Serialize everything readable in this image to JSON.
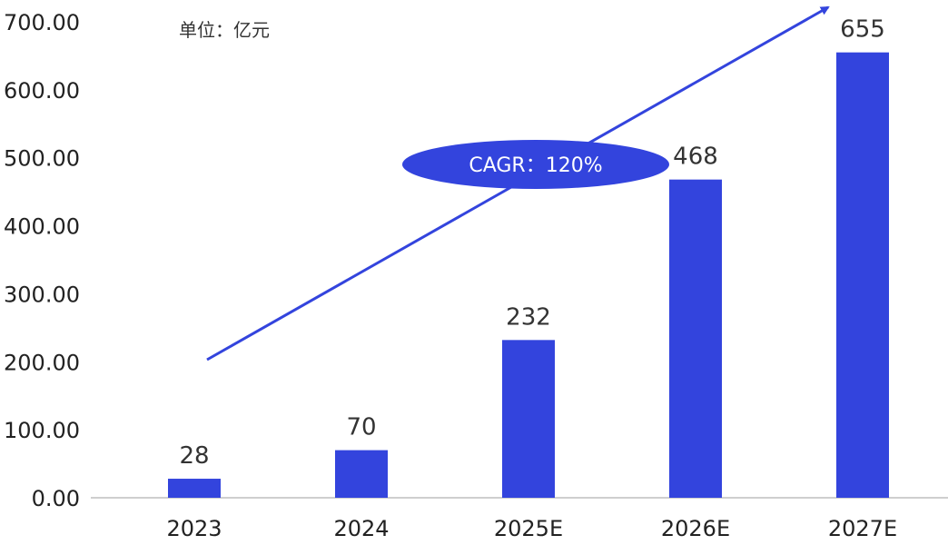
{
  "chart_data": {
    "type": "bar",
    "unit_label": "单位：亿元",
    "categories": [
      "2023",
      "2024",
      "2025E",
      "2026E",
      "2027E"
    ],
    "values": [
      28,
      70,
      232,
      468,
      655
    ],
    "data_labels": [
      "28",
      "70",
      "232",
      "468",
      "655"
    ],
    "y_ticks": [
      "0.00",
      "100.00",
      "200.00",
      "300.00",
      "400.00",
      "500.00",
      "600.00",
      "700.00"
    ],
    "ylim": [
      0,
      700
    ],
    "grid": false,
    "bar_color": "#3344dd",
    "annotation": {
      "text": "CAGR：120%",
      "color": "#3344dd"
    }
  }
}
